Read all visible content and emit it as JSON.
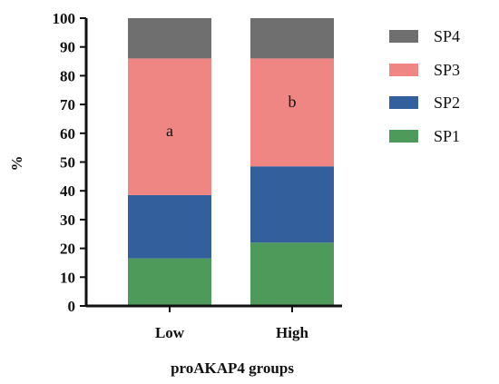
{
  "chart_data": {
    "type": "bar",
    "stacked": true,
    "categories": [
      "Low",
      "High"
    ],
    "series": [
      {
        "name": "SP1",
        "values": [
          16.5,
          22
        ],
        "color": "#4d9a5a"
      },
      {
        "name": "SP2",
        "values": [
          22,
          26.5
        ],
        "color": "#335f9d"
      },
      {
        "name": "SP3",
        "values": [
          47.5,
          37.5
        ],
        "color": "#ef8683"
      },
      {
        "name": "SP4",
        "values": [
          14,
          14
        ],
        "color": "#6f6f6f"
      }
    ],
    "annotations": [
      "a",
      "b"
    ],
    "xlabel": "proAKAP4 groups",
    "ylabel": "%",
    "ylim": [
      0,
      100
    ],
    "yticks": [
      0,
      10,
      20,
      30,
      40,
      50,
      60,
      70,
      80,
      90,
      100
    ],
    "legend_position": "right",
    "grid": false
  }
}
